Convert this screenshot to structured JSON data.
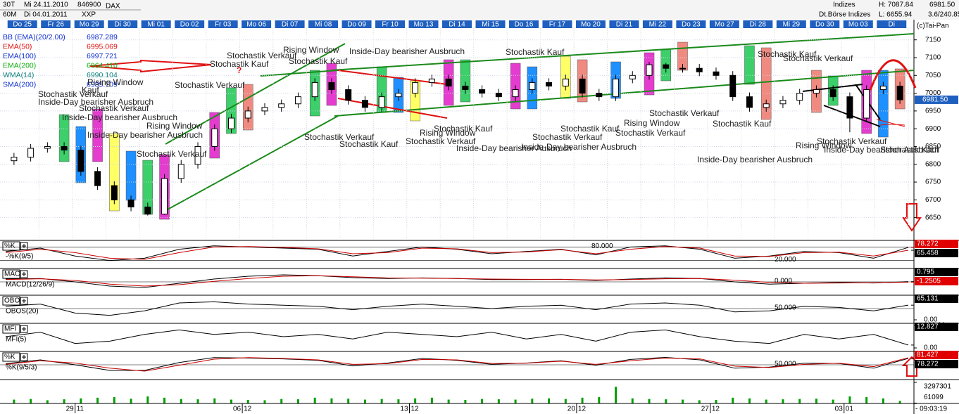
{
  "chart_data": {
    "type": "candlestick",
    "header": {
      "period": "30T",
      "interval": "60M",
      "from": "Mi 24.11.2010",
      "to": "Di 04.01.2011",
      "wkn": "846900",
      "exchange": "XXP",
      "name": "DAX",
      "group": "Indizes",
      "group2": "Dt.Börse Indizes",
      "high": "H: 7087.84",
      "low": "L: 6655.94",
      "last": "6981.50",
      "change": "3.6/240.85",
      "copyright": "(c)Tai-Pan"
    },
    "days": [
      "Do 25",
      "Fr 26",
      "Mo 29",
      "Di 30",
      "Mi 01",
      "Do 02",
      "Fr 03",
      "Mo 06",
      "Di 07",
      "Mi 08",
      "Do 09",
      "Fr 10",
      "Mo 13",
      "Di 14",
      "Mi 15",
      "Do 16",
      "Fr 17",
      "Mo 20",
      "Di 21",
      "Mi 22",
      "Do 23",
      "Mo 27",
      "Di 28",
      "Mi 29",
      "Do 30",
      "Mo 03",
      "Di"
    ],
    "x_labels": [
      {
        "day": "29",
        "month": "11"
      },
      {
        "day": "06",
        "month": "12"
      },
      {
        "day": "13",
        "month": "12"
      },
      {
        "day": "20",
        "month": "12"
      },
      {
        "day": "27",
        "month": "12"
      },
      {
        "day": "03",
        "month": "01"
      }
    ],
    "indicators": [
      {
        "name": "BB (EMA)(20/2.00)",
        "value": 6987.289,
        "color": "#1030d0"
      },
      {
        "name": "EMA(50)",
        "value": 6995.069,
        "color": "#e01010"
      },
      {
        "name": "EMA(100)",
        "value": 6997.721,
        "color": "#1030d0"
      },
      {
        "name": "EMA(200)",
        "value": 6964.41,
        "value_label": "6964.410",
        "color": "#10b010"
      },
      {
        "name": "WMA(14)",
        "value": 6990.104,
        "color": "#108080"
      },
      {
        "name": "SMA(200)",
        "value": 6985.709,
        "color": "#1030d0"
      }
    ],
    "open": [
      6810,
      6820,
      6845,
      6850,
      6840,
      6780,
      6740,
      6700,
      6680,
      6660,
      6760,
      6800,
      6850,
      6900,
      6930,
      6950,
      6960,
      6970,
      6990,
      7030,
      7010,
      6980,
      6960,
      6990,
      7000,
      7030,
      7040,
      7020,
      7010,
      7000,
      6990,
      7010,
      7030,
      7020,
      7040,
      7000,
      6990,
      7040,
      7050,
      7080,
      7070,
      7070,
      7060,
      7050,
      6990,
      6960,
      6970,
      6980,
      7000,
      7010,
      6990,
      6930,
      7010,
      7020
    ],
    "high": [
      6832,
      6857,
      6862,
      6862,
      6852,
      6792,
      6752,
      6712,
      6692,
      6772,
      6812,
      6862,
      6912,
      6942,
      6962,
      6972,
      6982,
      7002,
      7042,
      7042,
      7022,
      6992,
      7002,
      7012,
      7042,
      7052,
      7052,
      7032,
      7022,
      7012,
      7022,
      7042,
      7042,
      7052,
      7052,
      7012,
      7052,
      7062,
      7087.84,
      7085,
      7082,
      7082,
      7072,
      7062,
      7002,
      6982,
      6992,
      7012,
      7022,
      7022,
      7002,
      7022,
      7032,
      7032
    ],
    "low": [
      6798,
      6808,
      6833,
      6828,
      6768,
      6728,
      6688,
      6668,
      6655.94,
      6658,
      6748,
      6788,
      6838,
      6888,
      6918,
      6938,
      6948,
      6958,
      6978,
      6998,
      6968,
      6948,
      6948,
      6978,
      6988,
      7018,
      7008,
      6998,
      6988,
      6978,
      6978,
      6998,
      7008,
      7008,
      6988,
      6978,
      6978,
      7028,
      7038,
      7058,
      7058,
      7048,
      7038,
      6978,
      6948,
      6948,
      6958,
      6968,
      6988,
      6978,
      6890,
      6918,
      6998,
      6970
    ],
    "close": [
      6820,
      6845,
      6850,
      6840,
      6780,
      6740,
      6700,
      6680,
      6660,
      6760,
      6800,
      6850,
      6900,
      6930,
      6950,
      6960,
      6970,
      6990,
      7030,
      7010,
      6980,
      6960,
      6990,
      7000,
      7030,
      7040,
      7020,
      7010,
      7000,
      6990,
      7010,
      7030,
      7020,
      7040,
      7000,
      6990,
      7040,
      7050,
      7080,
      7070,
      7070,
      7060,
      7050,
      6990,
      6960,
      6970,
      6980,
      7000,
      7010,
      6990,
      6930,
      7010,
      7020,
      6981.5
    ],
    "ylim": [
      6590,
      7183
    ],
    "yticks": [
      6650,
      6700,
      6750,
      6800,
      6850,
      6900,
      6950,
      7000,
      7050,
      7100,
      7150
    ],
    "annotations": [
      "Stochastik Verkauf",
      "Stochastik Kauf",
      "?",
      "Rising Window",
      "Stochastik Kauf",
      "Inside-Day bearisher Ausbruch",
      "Stochastik Kauf",
      "Stochastik Kauf",
      "Stochastik Verkauf",
      "Rising Window",
      "Stochastik Verkauf",
      "Kauf",
      "Stochastik Verkauf",
      "Inside-Day bearisher Ausbruch",
      "Stochastik Verkauf",
      "Inside-Day bearisher Ausbruch",
      "Rising Window",
      "Inside-Day bearisher Ausbruch",
      "Stochastik Verkauf",
      "Stochastik Verkauf",
      "Stochastik Kauf",
      "Rising Window",
      "Stochastik Kauf",
      "Stochastik Verkauf",
      "Inside-Day bearisher Ausbruch",
      "Stochastik Verkauf",
      "Stochastik Kauf",
      "Inside-Day bearisher Ausbruch",
      "Stochastik Verkauf",
      "Rising Window",
      "Stochastik Verkauf",
      "Stochastik Kauf",
      "Inside-Day bearisher Ausbruch",
      "Stochastik Verkauf",
      "Rising Window",
      "Inside-Day bearisher Ausbruch",
      "Stochastik Kauf"
    ],
    "panels": [
      {
        "name": "%K",
        "label": "-%K(9/5)",
        "ylim": [
          0,
          100
        ],
        "levels": [
          {
            "value": 80,
            "label": "80.000"
          },
          {
            "value": 20,
            "label": "20.000"
          }
        ],
        "yticks": [],
        "series": [
          {
            "color": "#000000",
            "values": [
              60,
              75,
              40,
              20,
              30,
              70,
              85,
              80,
              75,
              70,
              40,
              60,
              80,
              70,
              50,
              60,
              70,
              45,
              80,
              85,
              70,
              30,
              40,
              60,
              55,
              30,
              78.272
            ]
          },
          {
            "color": "#cc0000",
            "values": [
              55,
              70,
              55,
              30,
              25,
              55,
              80,
              82,
              78,
              72,
              50,
              55,
              75,
              72,
              55,
              58,
              68,
              50,
              70,
              82,
              75,
              40,
              38,
              55,
              57,
              40,
              65.458
            ]
          }
        ],
        "current": [
          78.272,
          65.458
        ],
        "current_colors": [
          "#e00000",
          "#000000"
        ]
      },
      {
        "name": "MACD",
        "label": "MACD(12/26/9)",
        "ylim": [
          -40,
          40
        ],
        "levels": [
          {
            "value": 0,
            "label": "0.000"
          }
        ],
        "yticks": [],
        "series": [
          {
            "color": "#000000",
            "values": [
              10,
              12,
              0,
              -15,
              -20,
              -5,
              10,
              20,
              25,
              22,
              15,
              12,
              14,
              12,
              8,
              8,
              9,
              5,
              10,
              14,
              12,
              0,
              -8,
              -5,
              -2,
              -4,
              0.795
            ]
          },
          {
            "color": "#cc0000",
            "values": [
              8,
              11,
              5,
              -8,
              -15,
              -10,
              2,
              12,
              20,
              22,
              18,
              14,
              13,
              12,
              10,
              9,
              9,
              7,
              8,
              11,
              12,
              6,
              -2,
              -5,
              -4,
              -3,
              -1.2505
            ]
          }
        ],
        "current": [
          0.795,
          -1.2505
        ],
        "current_colors": [
          "#000000",
          "#e00000"
        ]
      },
      {
        "name": "OBOS",
        "label": "OBOS(20)",
        "ylim": [
          0,
          100
        ],
        "levels": [
          {
            "value": 50,
            "label": "50.000"
          }
        ],
        "yticks": [
          {
            "value": 0,
            "label": "0.00"
          }
        ],
        "series": [
          {
            "color": "#000000",
            "values": [
              60,
              70,
              30,
              20,
              40,
              75,
              80,
              70,
              65,
              60,
              45,
              60,
              70,
              60,
              50,
              60,
              65,
              45,
              70,
              75,
              65,
              35,
              40,
              60,
              55,
              40,
              65.131
            ]
          }
        ],
        "current": [
          65.131
        ],
        "current_colors": [
          "#000000"
        ]
      },
      {
        "name": "MFI",
        "label": "MFI(5)",
        "ylim": [
          0,
          100
        ],
        "levels": [],
        "yticks": [
          {
            "value": 100,
            "label": "100.00"
          },
          {
            "value": 0,
            "label": "0.00"
          }
        ],
        "series": [
          {
            "color": "#000000",
            "values": [
              50,
              70,
              20,
              30,
              60,
              80,
              60,
              70,
              50,
              60,
              40,
              70,
              60,
              50,
              70,
              40,
              60,
              30,
              70,
              80,
              50,
              30,
              20,
              60,
              40,
              60,
              12.827
            ]
          }
        ],
        "current": [
          12.827
        ],
        "current_colors": [
          "#000000"
        ]
      },
      {
        "name": "%K",
        "label": "%K(9/5/3)",
        "ylim": [
          0,
          100
        ],
        "levels": [
          {
            "value": 50,
            "label": "50.000"
          }
        ],
        "yticks": [],
        "series": [
          {
            "color": "#000000",
            "values": [
              55,
              72,
              50,
              25,
              25,
              60,
              82,
              80,
              76,
              70,
              45,
              58,
              78,
              70,
              52,
              58,
              68,
              48,
              74,
              83,
              72,
              35,
              40,
              57,
              56,
              35,
              78.272
            ]
          },
          {
            "color": "#cc0000",
            "values": [
              52,
              68,
              58,
              35,
              22,
              48,
              75,
              82,
              78,
              72,
              52,
              55,
              74,
              72,
              56,
              57,
              66,
              52,
              68,
              80,
              76,
              44,
              38,
              52,
              57,
              42,
              81.427
            ]
          }
        ],
        "current": [
          81.427,
          78.272
        ],
        "current_colors": [
          "#e00000",
          "#000000"
        ]
      }
    ],
    "volume": {
      "color": "#00a000",
      "ylim": [
        0,
        3297301
      ],
      "yticks": [
        3297301,
        61099
      ],
      "values": [
        600000,
        700000,
        500000,
        650000,
        800000,
        900000,
        1000000,
        750000,
        1100000,
        900000,
        700000,
        650000,
        800000,
        600000,
        550000,
        500000,
        700000,
        650000,
        900000,
        800000,
        750000,
        600000,
        700000,
        650000,
        800000,
        900000,
        600000,
        550000,
        700000,
        650000,
        600000,
        750000,
        800000,
        700000,
        900000,
        1000000,
        2600000,
        800000,
        700000,
        650000,
        600000,
        500000,
        550000,
        900000,
        800000,
        600000,
        650000,
        700000,
        750000,
        600000,
        1100000,
        1000000,
        800000,
        400000
      ]
    },
    "time": "- 09:03:19"
  }
}
